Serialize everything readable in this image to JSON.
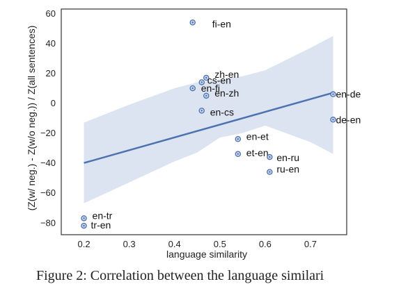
{
  "caption": "Figure 2: Correlation between the language similari",
  "chart_data": {
    "type": "scatter",
    "xlabel": "language similarity",
    "ylabel": "(Z(w/ neg.) - Z(w/o neg.)) / Z(all sentences)",
    "xlim": [
      0.15,
      0.78
    ],
    "ylim": [
      -88,
      63
    ],
    "xticks": [
      0.2,
      0.3,
      0.4,
      0.5,
      0.6,
      0.7
    ],
    "yticks": [
      -80,
      -60,
      -40,
      -20,
      0,
      20,
      40,
      60
    ],
    "grid": false,
    "colors": {
      "point": "#4c72b0",
      "line": "#4c72b0",
      "band": "#dce4f1"
    },
    "points": [
      {
        "label": "fi-en",
        "x": 0.44,
        "y": 54
      },
      {
        "label": "zh-en",
        "x": 0.47,
        "y": 17
      },
      {
        "label": "cs-en",
        "x": 0.46,
        "y": 14
      },
      {
        "label": "en-fi",
        "x": 0.44,
        "y": 10
      },
      {
        "label": "en-zh",
        "x": 0.47,
        "y": 5
      },
      {
        "label": "en-cs",
        "x": 0.46,
        "y": -5
      },
      {
        "label": "en-de",
        "x": 0.75,
        "y": 6
      },
      {
        "label": "de-en",
        "x": 0.75,
        "y": -11
      },
      {
        "label": "en-et",
        "x": 0.54,
        "y": -24
      },
      {
        "label": "et-en",
        "x": 0.54,
        "y": -34
      },
      {
        "label": "en-ru",
        "x": 0.61,
        "y": -36
      },
      {
        "label": "ru-en",
        "x": 0.61,
        "y": -46
      },
      {
        "label": "en-tr",
        "x": 0.2,
        "y": -77
      },
      {
        "label": "tr-en",
        "x": 0.2,
        "y": -82
      }
    ],
    "regression": {
      "x": [
        0.2,
        0.75
      ],
      "y": [
        -40,
        7
      ],
      "band_x": [
        0.2,
        0.3,
        0.4,
        0.45,
        0.5,
        0.55,
        0.6,
        0.7,
        0.75
      ],
      "band_upper": [
        -13,
        -1,
        10,
        14,
        16,
        18,
        22,
        37,
        45
      ],
      "band_lower": [
        -67,
        -53,
        -39,
        -33,
        -23,
        -20,
        -15,
        -26,
        -34
      ]
    }
  }
}
